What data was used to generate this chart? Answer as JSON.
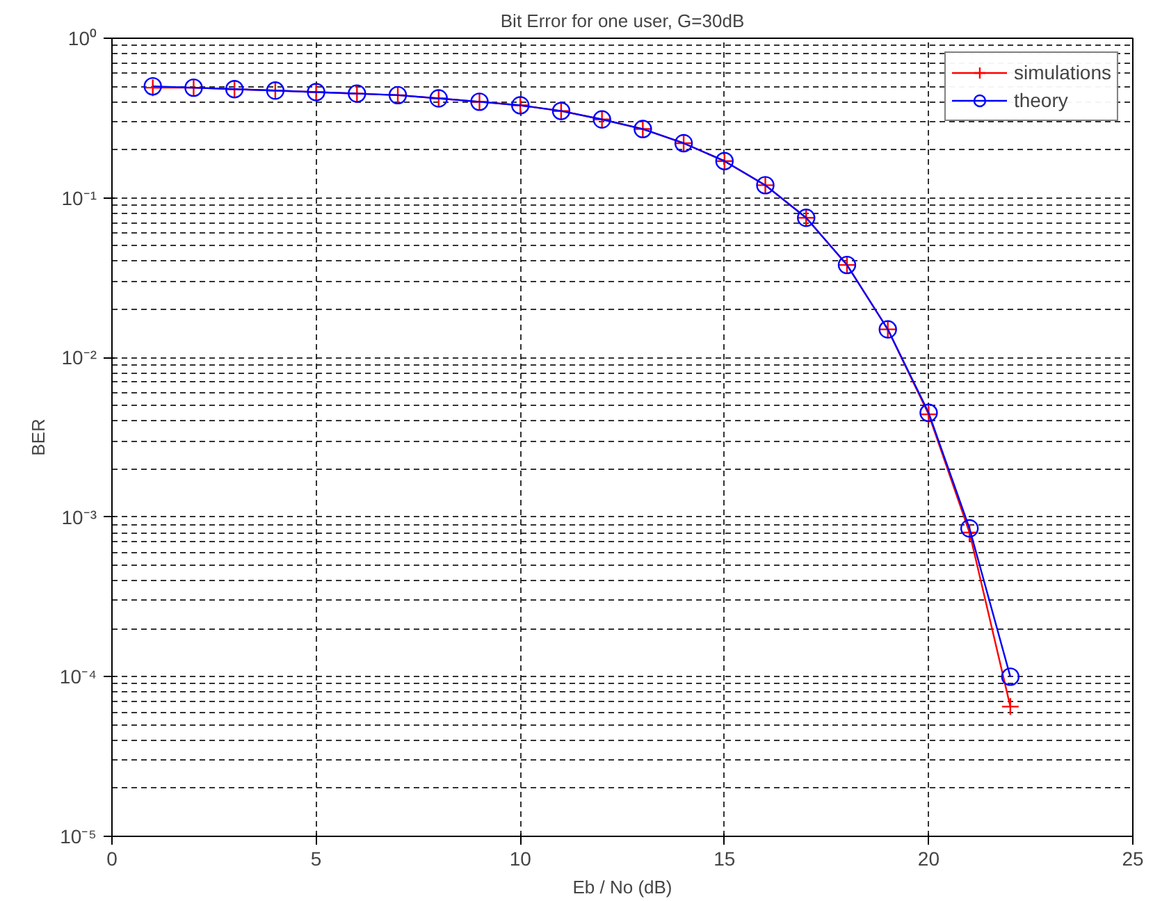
{
  "chart_data": {
    "type": "line",
    "title": "Bit Error for one user, G=30dB",
    "xlabel": "Eb / No (dB)",
    "ylabel": "BER",
    "x": [
      1,
      2,
      3,
      4,
      5,
      6,
      7,
      8,
      9,
      10,
      11,
      12,
      13,
      14,
      15,
      16,
      17,
      18,
      19,
      20,
      21,
      22
    ],
    "series": [
      {
        "name": "simulations",
        "color": "#ff0000",
        "marker": "cross",
        "values": [
          0.49,
          0.49,
          0.48,
          0.47,
          0.46,
          0.45,
          0.44,
          0.42,
          0.4,
          0.38,
          0.35,
          0.31,
          0.27,
          0.22,
          0.17,
          0.12,
          0.075,
          0.038,
          0.015,
          0.0044,
          0.0008,
          6.5e-05
        ]
      },
      {
        "name": "theory",
        "color": "#0000ff",
        "marker": "circle",
        "values": [
          0.5,
          0.49,
          0.48,
          0.47,
          0.46,
          0.45,
          0.44,
          0.42,
          0.4,
          0.38,
          0.35,
          0.31,
          0.27,
          0.22,
          0.17,
          0.12,
          0.075,
          0.038,
          0.015,
          0.0045,
          0.00085,
          0.0001
        ]
      }
    ],
    "log": "y",
    "xlim": [
      0,
      25
    ],
    "xticks": [
      0,
      5,
      10,
      15,
      20,
      25
    ],
    "ylim": [
      1e-05,
      1
    ],
    "yticks": [
      {
        "value": 1e-05,
        "label": "10⁻⁵"
      },
      {
        "value": 0.0001,
        "label": "10⁻⁴"
      },
      {
        "value": 0.001,
        "label": "10⁻³"
      },
      {
        "value": 0.01,
        "label": "10⁻²"
      },
      {
        "value": 0.1,
        "label": "10⁻¹"
      },
      {
        "value": 1,
        "label": "10⁰"
      }
    ],
    "grid": true,
    "legend": "top right",
    "line_style": "solid"
  }
}
